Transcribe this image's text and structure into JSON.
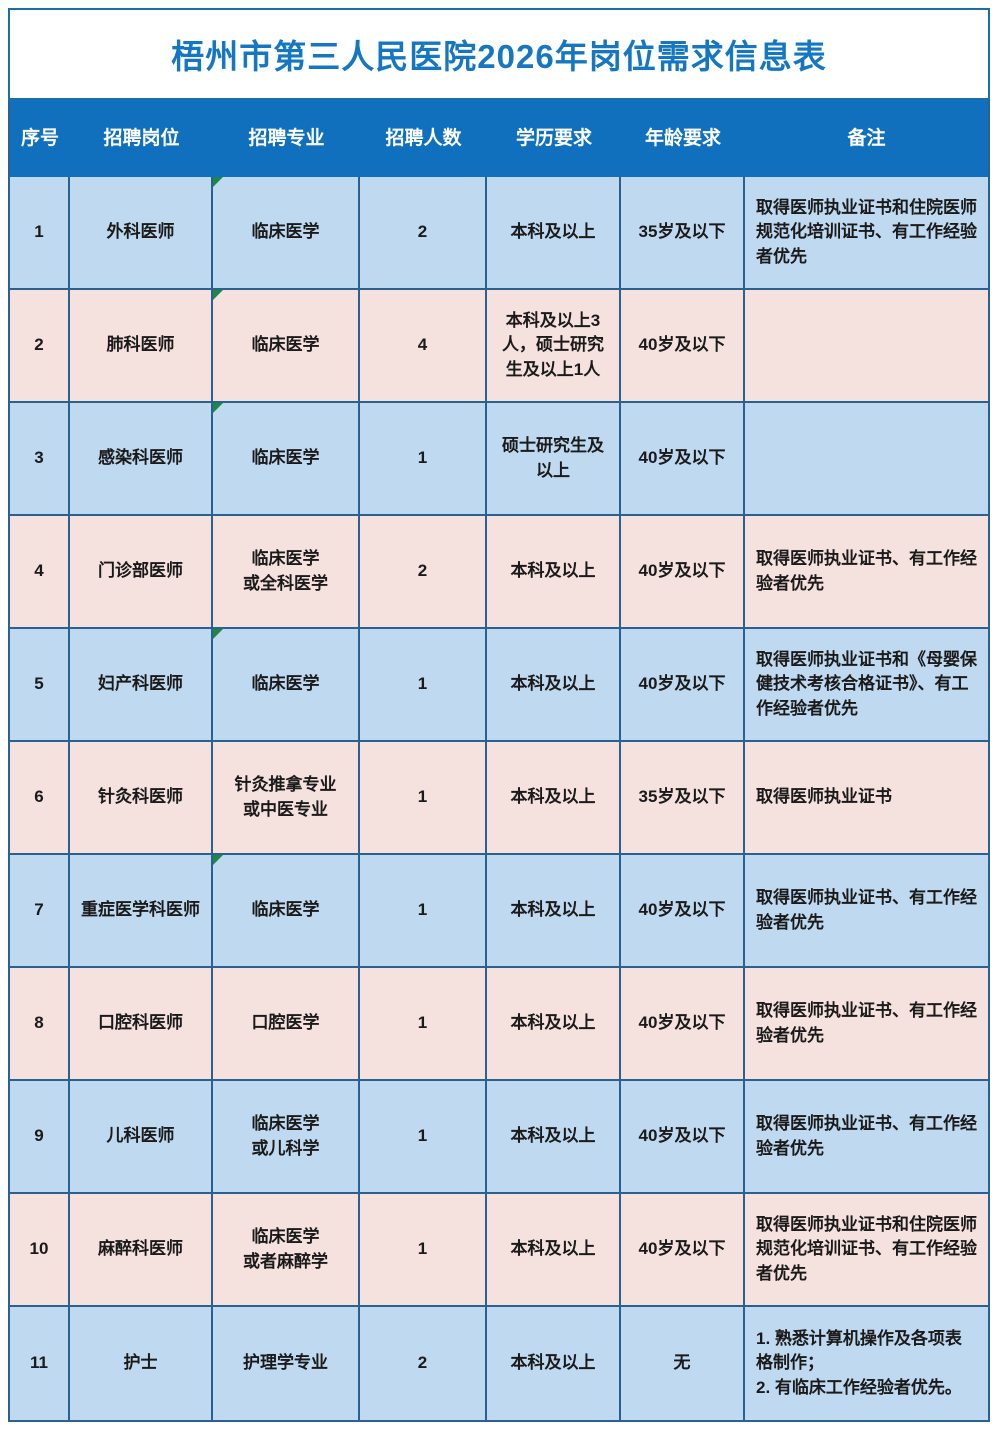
{
  "title": "梧州市第三人民医院2026年岗位需求信息表",
  "colors": {
    "header_bg": "#1070BE",
    "title_color": "#1577C2",
    "row_blue": "#BFD9F1",
    "row_pink": "#F5E1DE",
    "grid_border": "#2A6191",
    "frame_border": "#1B6CA8",
    "triangle": "#1E8748"
  },
  "table": {
    "headers": [
      "序号",
      "招聘岗位",
      "招聘专业",
      "招聘人数",
      "学历要求",
      "年龄要求",
      "备注"
    ],
    "rows": [
      {
        "no": "1",
        "position": "外科医师",
        "major": "临床医学",
        "count": "2",
        "education": "本科及以上",
        "age": "35岁及以下",
        "remark": "取得医师执业证书和住院医师规范化培训证书、有工作经验者优先",
        "corner_flag": true
      },
      {
        "no": "2",
        "position": "肺科医师",
        "major": "临床医学",
        "count": "4",
        "education": "本科及以上3人，硕士研究生及以上1人",
        "age": "40岁及以下",
        "remark": "",
        "corner_flag": true
      },
      {
        "no": "3",
        "position": "感染科医师",
        "major": "临床医学",
        "count": "1",
        "education": "硕士研究生及\n以上",
        "age": "40岁及以下",
        "remark": "",
        "corner_flag": true
      },
      {
        "no": "4",
        "position": "门诊部医师",
        "major": "临床医学\n或全科医学",
        "count": "2",
        "education": "本科及以上",
        "age": "40岁及以下",
        "remark": "取得医师执业证书、有工作经验者优先",
        "corner_flag": false
      },
      {
        "no": "5",
        "position": "妇产科医师",
        "major": "临床医学",
        "count": "1",
        "education": "本科及以上",
        "age": "40岁及以下",
        "remark": "取得医师执业证书和《母婴保健技术考核合格证书》、有工作经验者优先",
        "corner_flag": true
      },
      {
        "no": "6",
        "position": "针灸科医师",
        "major": "针灸推拿专业\n或中医专业",
        "count": "1",
        "education": "本科及以上",
        "age": "35岁及以下",
        "remark": "取得医师执业证书",
        "corner_flag": false
      },
      {
        "no": "7",
        "position": "重症医学科医师",
        "major": "临床医学",
        "count": "1",
        "education": "本科及以上",
        "age": "40岁及以下",
        "remark": "取得医师执业证书、有工作经验者优先",
        "corner_flag": true
      },
      {
        "no": "8",
        "position": "口腔科医师",
        "major": "口腔医学",
        "count": "1",
        "education": "本科及以上",
        "age": "40岁及以下",
        "remark": "取得医师执业证书、有工作经验者优先",
        "corner_flag": false
      },
      {
        "no": "9",
        "position": "儿科医师",
        "major": "临床医学\n或儿科学",
        "count": "1",
        "education": "本科及以上",
        "age": "40岁及以下",
        "remark": "取得医师执业证书、有工作经验者优先",
        "corner_flag": false
      },
      {
        "no": "10",
        "position": "麻醉科医师",
        "major": "临床医学\n或者麻醉学",
        "count": "1",
        "education": "本科及以上",
        "age": "40岁及以下",
        "remark": "取得医师执业证书和住院医师规范化培训证书、有工作经验者优先",
        "corner_flag": false
      },
      {
        "no": "11",
        "position": "护士",
        "major": "护理学专业",
        "count": "2",
        "education": "本科及以上",
        "age": "无",
        "remark": "1. 熟悉计算机操作及各项表格制作；\n2. 有临床工作经验者优先。",
        "corner_flag": false
      }
    ]
  }
}
